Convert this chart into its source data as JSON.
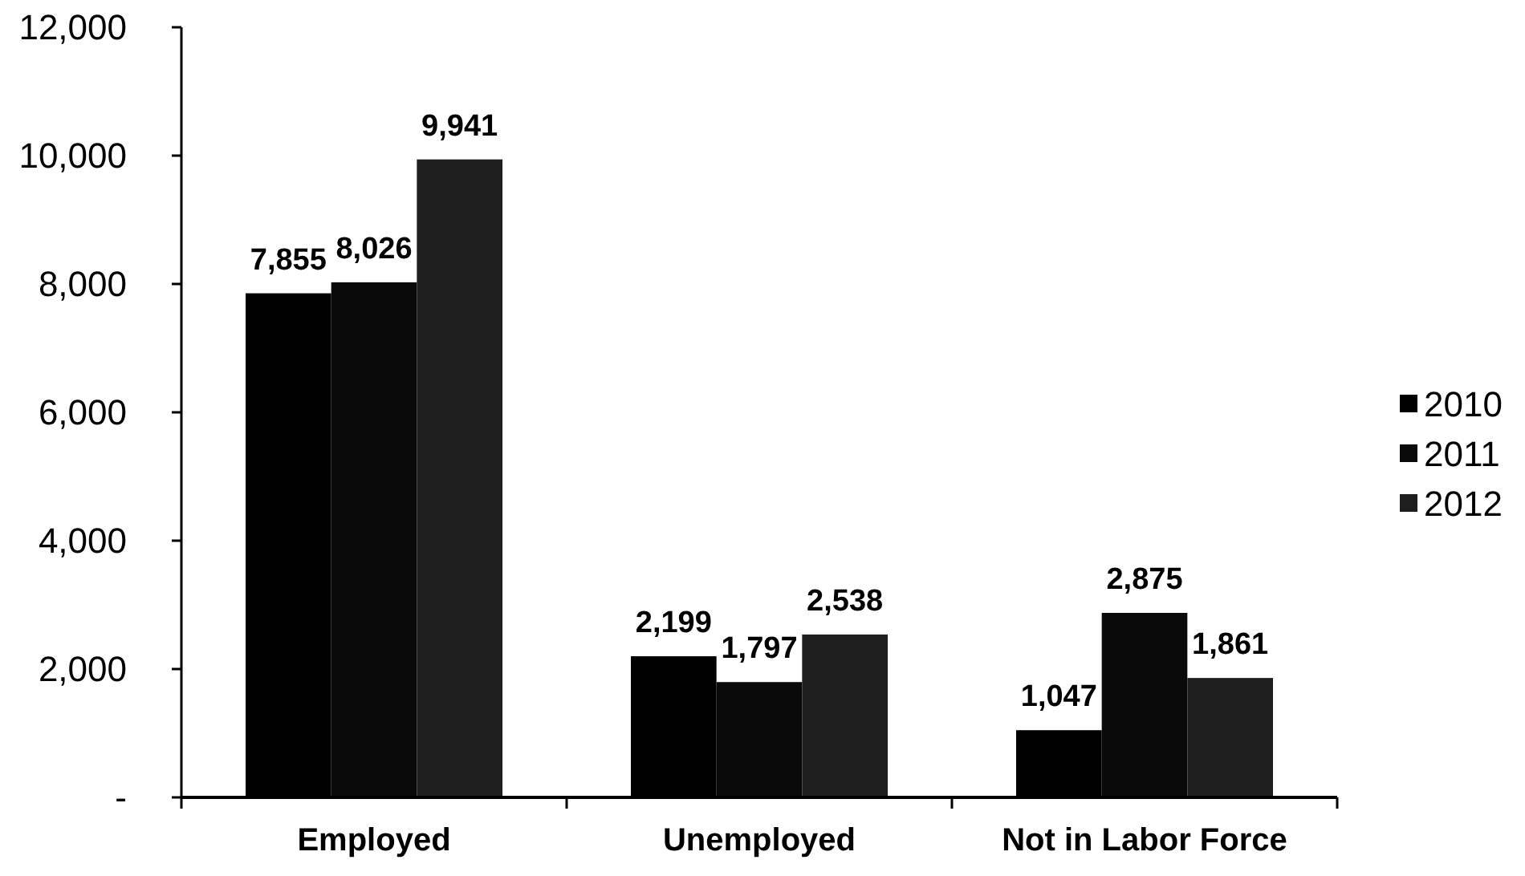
{
  "chart_data": {
    "type": "bar",
    "categories": [
      "Employed",
      "Unemployed",
      "Not in Labor Force"
    ],
    "series": [
      {
        "name": "2010",
        "color": "#000000",
        "values": [
          7855,
          2199,
          1047
        ],
        "value_labels": [
          "7,855",
          "2,199",
          "1,047"
        ]
      },
      {
        "name": "2011",
        "color": "#0a0a0a",
        "values": [
          8026,
          1797,
          2875
        ],
        "value_labels": [
          "8,026",
          "1,797",
          "2,875"
        ]
      },
      {
        "name": "2012",
        "color": "#1e1e1e",
        "values": [
          9941,
          2538,
          1861
        ],
        "value_labels": [
          "9,941",
          "2,538",
          "1,861"
        ]
      }
    ],
    "ylim": [
      0,
      12000
    ],
    "yticks": [
      {
        "value": 0,
        "label": "-"
      },
      {
        "value": 2000,
        "label": "2,000"
      },
      {
        "value": 4000,
        "label": "4,000"
      },
      {
        "value": 6000,
        "label": "6,000"
      },
      {
        "value": 8000,
        "label": "8,000"
      },
      {
        "value": 10000,
        "label": "10,000"
      },
      {
        "value": 12000,
        "label": "12,000"
      }
    ],
    "legend": "right"
  }
}
